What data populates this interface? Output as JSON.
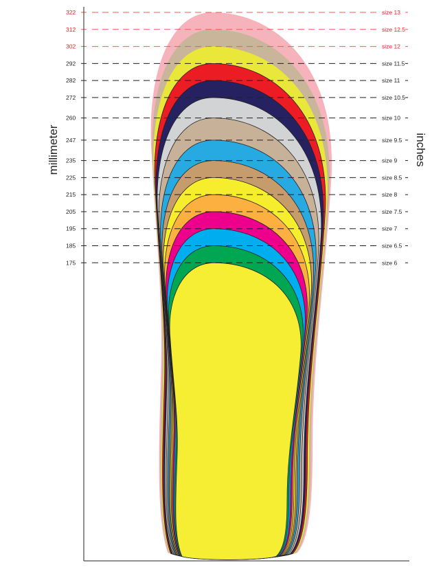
{
  "chart_data": {
    "type": "area",
    "title": "",
    "ylabel_left": "millimeter",
    "ylabel_right": "inches",
    "ylim": [
      0,
      322
    ],
    "grid": "dashed horizontal lines at each size length",
    "legend": "right labels",
    "series": [
      {
        "mm": 322,
        "size": "size 13",
        "color": "#f6b3bb",
        "highlight": true
      },
      {
        "mm": 312,
        "size": "size 12.5",
        "color": "#c8b59a",
        "highlight": true
      },
      {
        "mm": 302,
        "size": "size 12",
        "color": "#e9e73a",
        "highlight": true
      },
      {
        "mm": 292,
        "size": "size 11.5",
        "color": "#ec1c24",
        "highlight": false
      },
      {
        "mm": 282,
        "size": "size 11",
        "color": "#262262",
        "highlight": false
      },
      {
        "mm": 272,
        "size": "size 10.5",
        "color": "#d1d3d4",
        "highlight": false
      },
      {
        "mm": 260,
        "size": "size 10",
        "color": "#c7b299",
        "highlight": false
      },
      {
        "mm": 247,
        "size": "size 9.5",
        "color": "#27aae1",
        "highlight": false
      },
      {
        "mm": 235,
        "size": "size 9",
        "color": "#c69c6d",
        "highlight": false
      },
      {
        "mm": 225,
        "size": "size 8.5",
        "color": "#f6ed2c",
        "highlight": false
      },
      {
        "mm": 215,
        "size": "size 8",
        "color": "#fbb040",
        "highlight": false
      },
      {
        "mm": 205,
        "size": "size 7.5",
        "color": "#ec008c",
        "highlight": false
      },
      {
        "mm": 195,
        "size": "size 7",
        "color": "#00aeef",
        "highlight": false
      },
      {
        "mm": 185,
        "size": "size 6.5",
        "color": "#00a651",
        "highlight": false
      },
      {
        "mm": 175,
        "size": "size 6",
        "color": "#f5ee32",
        "highlight": false
      }
    ],
    "colors": {
      "highlight_text": "#ec1c24",
      "normal_text": "#231f20",
      "highlight_line": "#f15a5a",
      "normal_line": "#231f20"
    }
  }
}
